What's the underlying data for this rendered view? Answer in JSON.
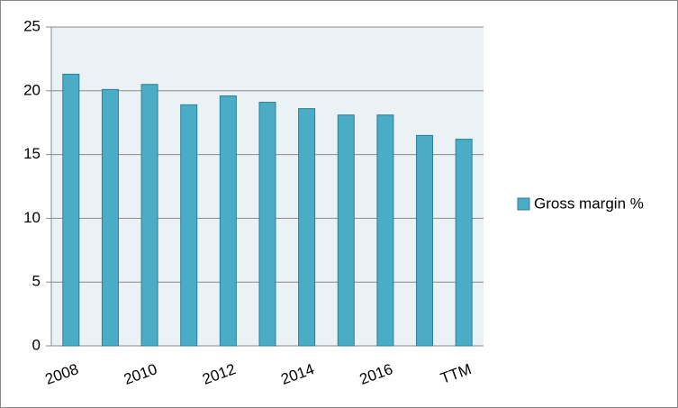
{
  "chart_data": {
    "type": "bar",
    "categories": [
      "2008",
      null,
      "2010",
      null,
      "2012",
      null,
      "2014",
      null,
      "2016",
      null,
      "TTM"
    ],
    "series": [
      {
        "name": "Gross margin %",
        "color": "#4bacc6",
        "values": [
          21.3,
          20.1,
          20.5,
          18.9,
          19.6,
          19.1,
          18.6,
          18.1,
          18.1,
          16.5,
          16.2
        ]
      }
    ],
    "ylim": [
      0,
      25
    ],
    "yticks": [
      0,
      5,
      10,
      15,
      20,
      25
    ],
    "grid": true,
    "legend": "right"
  }
}
